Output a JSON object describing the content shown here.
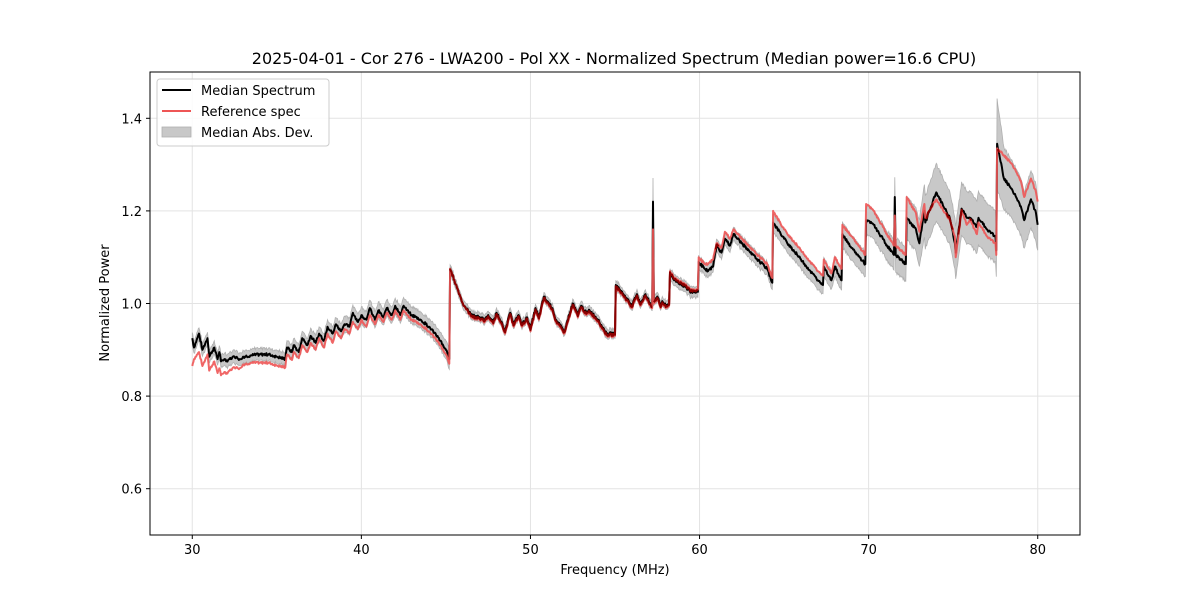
{
  "chart_data": {
    "type": "line",
    "title": "2025-04-01 - Cor 276 - LWA200 - Pol XX - Normalized Spectrum (Median power=16.6 CPU)",
    "xlabel": "Frequency (MHz)",
    "ylabel": "Normalized Power",
    "xlim": [
      27.5,
      82.5
    ],
    "ylim": [
      0.5,
      1.5
    ],
    "xticks": [
      30,
      40,
      50,
      60,
      70,
      80
    ],
    "xtick_labels": [
      "30",
      "40",
      "50",
      "60",
      "70",
      "80"
    ],
    "yticks": [
      0.6,
      0.8,
      1.0,
      1.2,
      1.4
    ],
    "ytick_labels": [
      "0.6",
      "0.8",
      "1.0",
      "1.2",
      "1.4"
    ],
    "grid": true,
    "legend": {
      "placement": "top-left",
      "entries": [
        {
          "label": "Median Spectrum",
          "kind": "line",
          "color": "#000000"
        },
        {
          "label": "Reference spec",
          "kind": "line",
          "color": "#f05050"
        },
        {
          "label": "Median Abs. Dev.",
          "kind": "band",
          "color": "#c8c8c8"
        }
      ]
    },
    "colors": {
      "median": "#000000",
      "reference": "#ee5555",
      "mad_fill": "#c8c8c8",
      "mad_edge": "#a8a8a8",
      "overlap": "#8b0000"
    },
    "x": [
      30.0,
      30.1,
      30.4,
      30.6,
      30.9,
      31.0,
      31.3,
      31.5,
      31.6,
      31.7,
      31.9,
      32.0,
      32.2,
      32.5,
      32.8,
      33.0,
      33.5,
      34.0,
      34.5,
      35.0,
      35.5,
      35.6,
      35.9,
      36.0,
      36.3,
      36.5,
      36.8,
      37.0,
      37.3,
      37.5,
      37.8,
      38.0,
      38.3,
      38.5,
      38.8,
      39.0,
      39.3,
      39.5,
      39.8,
      40.0,
      40.3,
      40.5,
      40.8,
      41.0,
      41.3,
      41.5,
      41.8,
      42.0,
      42.3,
      42.5,
      42.8,
      43.0,
      43.5,
      44.0,
      44.5,
      45.0,
      45.2,
      45.25,
      45.5,
      46.0,
      46.5,
      47.0,
      47.3,
      47.5,
      47.8,
      48.0,
      48.3,
      48.5,
      48.8,
      49.0,
      49.3,
      49.5,
      49.8,
      50.0,
      50.3,
      50.5,
      50.8,
      51.0,
      51.3,
      51.5,
      52.0,
      52.5,
      52.8,
      53.0,
      53.3,
      53.5,
      54.0,
      54.5,
      55.0,
      55.05,
      55.5,
      56.0,
      56.3,
      56.5,
      56.8,
      57.0,
      57.2,
      57.25,
      57.3,
      57.5,
      57.7,
      57.8,
      58.0,
      58.2,
      58.25,
      58.5,
      59.0,
      59.5,
      59.9,
      59.95,
      60.3,
      60.5,
      60.8,
      61.0,
      61.3,
      61.5,
      61.8,
      62.0,
      63.0,
      64.0,
      64.3,
      64.35,
      65.0,
      66.0,
      67.0,
      67.3,
      67.35,
      67.8,
      68.0,
      68.4,
      68.45,
      69.0,
      69.8,
      69.85,
      70.3,
      71.0,
      71.5,
      71.55,
      71.6,
      72.2,
      72.25,
      72.8,
      73.0,
      73.3,
      73.35,
      74.0,
      74.8,
      75.1,
      75.15,
      75.5,
      75.8,
      76.0,
      76.4,
      76.5,
      77.0,
      77.5,
      77.55,
      77.6,
      78.0,
      78.5,
      79.0,
      79.2,
      79.6,
      79.9,
      80.0
    ],
    "median": [
      0.925,
      0.905,
      0.935,
      0.9,
      0.925,
      0.885,
      0.905,
      0.88,
      0.895,
      0.875,
      0.88,
      0.875,
      0.88,
      0.885,
      0.88,
      0.885,
      0.888,
      0.89,
      0.89,
      0.885,
      0.88,
      0.905,
      0.895,
      0.91,
      0.895,
      0.925,
      0.91,
      0.93,
      0.915,
      0.935,
      0.92,
      0.95,
      0.935,
      0.955,
      0.94,
      0.955,
      0.95,
      0.98,
      0.96,
      0.975,
      0.965,
      0.99,
      0.965,
      0.985,
      0.97,
      0.99,
      0.975,
      0.995,
      0.975,
      0.995,
      0.98,
      0.975,
      0.965,
      0.95,
      0.93,
      0.9,
      0.88,
      1.075,
      1.05,
      1.0,
      0.975,
      0.97,
      0.965,
      0.975,
      0.96,
      0.98,
      0.96,
      0.94,
      0.98,
      0.955,
      0.975,
      0.955,
      0.97,
      0.945,
      0.99,
      0.97,
      1.015,
      1.005,
      0.99,
      0.965,
      0.94,
      1.0,
      0.975,
      0.995,
      0.98,
      0.985,
      0.965,
      0.935,
      0.935,
      1.04,
      1.02,
      0.995,
      1.02,
      1.0,
      1.02,
      1.005,
      0.995,
      1.22,
      1.005,
      1.015,
      0.995,
      1.005,
      0.995,
      1.0,
      1.065,
      1.05,
      1.04,
      1.025,
      1.025,
      1.09,
      1.075,
      1.07,
      1.08,
      1.125,
      1.11,
      1.14,
      1.125,
      1.15,
      1.11,
      1.075,
      1.045,
      1.175,
      1.14,
      1.095,
      1.05,
      1.04,
      1.08,
      1.05,
      1.08,
      1.05,
      1.15,
      1.12,
      1.085,
      1.18,
      1.17,
      1.13,
      1.105,
      1.23,
      1.105,
      1.085,
      1.185,
      1.16,
      1.13,
      1.2,
      1.175,
      1.24,
      1.185,
      1.13,
      1.11,
      1.205,
      1.185,
      1.185,
      1.165,
      1.185,
      1.16,
      1.145,
      1.115,
      1.345,
      1.27,
      1.245,
      1.21,
      1.18,
      1.225,
      1.195,
      1.17,
      1.225,
      1.195
    ],
    "reference": [
      0.865,
      0.88,
      0.895,
      0.865,
      0.89,
      0.855,
      0.875,
      0.85,
      0.86,
      0.845,
      0.852,
      0.848,
      0.855,
      0.862,
      0.86,
      0.868,
      0.872,
      0.872,
      0.872,
      0.866,
      0.862,
      0.89,
      0.878,
      0.895,
      0.882,
      0.91,
      0.895,
      0.915,
      0.9,
      0.925,
      0.905,
      0.935,
      0.915,
      0.94,
      0.925,
      0.945,
      0.935,
      0.96,
      0.945,
      0.965,
      0.95,
      0.975,
      0.955,
      0.975,
      0.96,
      0.98,
      0.965,
      0.985,
      0.965,
      0.985,
      0.97,
      0.965,
      0.955,
      0.94,
      0.92,
      0.89,
      0.87,
      1.075,
      1.05,
      1.0,
      0.97,
      0.965,
      0.96,
      0.97,
      0.955,
      0.975,
      0.955,
      0.935,
      0.975,
      0.95,
      0.97,
      0.95,
      0.965,
      0.94,
      0.985,
      0.965,
      1.01,
      1.0,
      0.985,
      0.96,
      0.935,
      0.995,
      0.97,
      0.99,
      0.975,
      0.98,
      0.96,
      0.93,
      0.93,
      1.035,
      1.015,
      0.99,
      1.015,
      0.995,
      1.015,
      1.0,
      0.99,
      1.16,
      1.0,
      1.01,
      0.99,
      1.0,
      0.99,
      0.995,
      1.07,
      1.055,
      1.045,
      1.03,
      1.03,
      1.1,
      1.085,
      1.085,
      1.095,
      1.13,
      1.12,
      1.155,
      1.14,
      1.16,
      1.12,
      1.085,
      1.055,
      1.2,
      1.16,
      1.115,
      1.07,
      1.06,
      1.095,
      1.065,
      1.1,
      1.075,
      1.17,
      1.145,
      1.105,
      1.215,
      1.2,
      1.155,
      1.125,
      1.19,
      1.125,
      1.105,
      1.23,
      1.195,
      1.155,
      1.215,
      1.185,
      1.225,
      1.18,
      1.145,
      1.1,
      1.2,
      1.17,
      1.18,
      1.15,
      1.175,
      1.145,
      1.13,
      1.105,
      1.335,
      1.32,
      1.3,
      1.265,
      1.23,
      1.27,
      1.24,
      1.22,
      1.265,
      1.235
    ],
    "mad_halfwidth": [
      0.012,
      0.012,
      0.012,
      0.012,
      0.012,
      0.012,
      0.012,
      0.012,
      0.012,
      0.012,
      0.012,
      0.012,
      0.012,
      0.012,
      0.012,
      0.012,
      0.012,
      0.012,
      0.012,
      0.012,
      0.012,
      0.014,
      0.014,
      0.014,
      0.014,
      0.014,
      0.014,
      0.014,
      0.014,
      0.014,
      0.014,
      0.014,
      0.014,
      0.014,
      0.014,
      0.016,
      0.016,
      0.016,
      0.016,
      0.016,
      0.016,
      0.016,
      0.016,
      0.016,
      0.016,
      0.016,
      0.016,
      0.016,
      0.016,
      0.016,
      0.016,
      0.016,
      0.016,
      0.016,
      0.016,
      0.018,
      0.022,
      0.008,
      0.008,
      0.008,
      0.008,
      0.008,
      0.008,
      0.008,
      0.008,
      0.008,
      0.008,
      0.008,
      0.008,
      0.008,
      0.008,
      0.008,
      0.008,
      0.008,
      0.008,
      0.008,
      0.008,
      0.008,
      0.008,
      0.008,
      0.008,
      0.008,
      0.008,
      0.008,
      0.008,
      0.008,
      0.008,
      0.008,
      0.008,
      0.008,
      0.008,
      0.008,
      0.008,
      0.008,
      0.008,
      0.008,
      0.008,
      0.05,
      0.008,
      0.008,
      0.008,
      0.008,
      0.008,
      0.008,
      0.01,
      0.01,
      0.01,
      0.01,
      0.01,
      0.012,
      0.012,
      0.012,
      0.012,
      0.012,
      0.012,
      0.012,
      0.012,
      0.012,
      0.013,
      0.013,
      0.013,
      0.018,
      0.018,
      0.018,
      0.018,
      0.018,
      0.018,
      0.018,
      0.02,
      0.02,
      0.025,
      0.025,
      0.025,
      0.03,
      0.03,
      0.03,
      0.03,
      0.04,
      0.035,
      0.035,
      0.045,
      0.045,
      0.05,
      0.055,
      0.055,
      0.06,
      0.055,
      0.055,
      0.055,
      0.055,
      0.055,
      0.055,
      0.055,
      0.055,
      0.055,
      0.055,
      0.055,
      0.095,
      0.065,
      0.06,
      0.06,
      0.06,
      0.06,
      0.06,
      0.055,
      0.06,
      0.055
    ]
  }
}
